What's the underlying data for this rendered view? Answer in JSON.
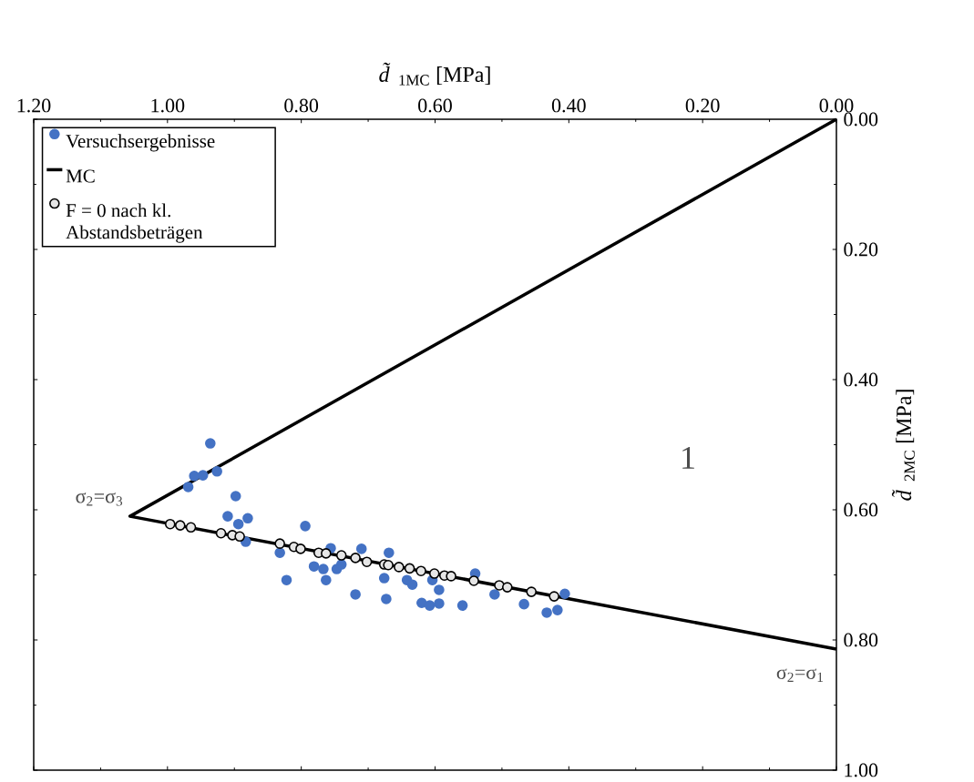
{
  "chart_data": {
    "type": "scatter",
    "xlabel": "*d̃*$_{1MC}$ [MPa]",
    "ylabel": "*d̃*$_{2MC}$ [MPa]",
    "xlim": [
      1.2,
      0
    ],
    "ylim": [
      1.0,
      0
    ],
    "xticks": [
      {
        "value": 1.2,
        "label": "1.20"
      },
      {
        "value": 1.0,
        "label": "1.00"
      },
      {
        "value": 0.8,
        "label": "0.80"
      },
      {
        "value": 0.6,
        "label": "0.60"
      },
      {
        "value": 0.4,
        "label": "0.40"
      },
      {
        "value": 0.2,
        "label": "0.20"
      },
      {
        "value": 0,
        "label": "0.00"
      }
    ],
    "yticks": [
      {
        "value": 0,
        "label": "0.00"
      },
      {
        "value": 0.2,
        "label": "0.20"
      },
      {
        "value": 0.4,
        "label": "0.40"
      },
      {
        "value": 0.6,
        "label": "0.60"
      },
      {
        "value": 0.8,
        "label": "0.80"
      },
      {
        "value": 1.0,
        "label": "1.00"
      }
    ],
    "legend": "top left",
    "series": [
      {
        "name": "Versuchsergebnisse",
        "color": "#4472c4",
        "x": [
          0.936,
          0.926,
          0.947,
          0.96,
          0.969,
          0.898,
          0.91,
          0.88,
          0.894,
          0.883,
          0.832,
          0.794,
          0.822,
          0.781,
          0.767,
          0.763,
          0.756,
          0.747,
          0.74,
          0.71,
          0.719,
          0.669,
          0.676,
          0.673,
          0.642,
          0.634,
          0.604,
          0.594,
          0.62,
          0.608,
          0.594,
          0.559,
          0.54,
          0.511,
          0.467,
          0.433,
          0.417,
          0.406
        ],
        "values": [
          0.498,
          0.541,
          0.547,
          0.548,
          0.565,
          0.579,
          0.61,
          0.613,
          0.622,
          0.649,
          0.666,
          0.625,
          0.708,
          0.687,
          0.691,
          0.708,
          0.659,
          0.691,
          0.684,
          0.66,
          0.73,
          0.666,
          0.705,
          0.737,
          0.708,
          0.715,
          0.708,
          0.723,
          0.743,
          0.747,
          0.744,
          0.747,
          0.698,
          0.73,
          0.745,
          0.758,
          0.754,
          0.729
        ]
      },
      {
        "name": "MC",
        "type": "line",
        "color": "#000000",
        "x": [
          0,
          1.056,
          0
        ],
        "values": [
          0,
          0.61,
          0.814
        ]
      },
      {
        "name": "F = 0 nach kl. Abstandsbeträgen",
        "color": "#e6e6e6",
        "x": [
          0.996,
          0.981,
          0.965,
          0.92,
          0.903,
          0.892,
          0.832,
          0.811,
          0.801,
          0.774,
          0.763,
          0.74,
          0.719,
          0.702,
          0.676,
          0.67,
          0.654,
          0.638,
          0.621,
          0.601,
          0.586,
          0.576,
          0.542,
          0.504,
          0.492,
          0.456,
          0.422
        ],
        "values": [
          0.622,
          0.624,
          0.627,
          0.636,
          0.639,
          0.641,
          0.652,
          0.657,
          0.66,
          0.666,
          0.667,
          0.67,
          0.674,
          0.68,
          0.684,
          0.685,
          0.688,
          0.69,
          0.694,
          0.698,
          0.701,
          0.702,
          0.709,
          0.716,
          0.719,
          0.726,
          0.733
        ]
      }
    ],
    "annotations": [
      {
        "text": "σ$_{2}$=σ$_{3}$",
        "x": 1.056,
        "y": 0.61
      },
      {
        "text": "σ$_{2}$=σ$_{1}$",
        "x": 0,
        "y": 0.814
      },
      "1"
    ]
  }
}
